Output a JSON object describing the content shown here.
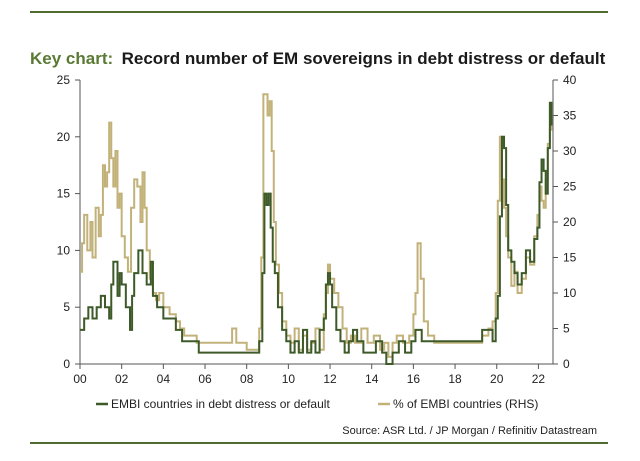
{
  "colors": {
    "rule": "#4f6b32",
    "title_key": "#5a7a34",
    "title_text": "#1a1a1a",
    "series_left": "#3d5a28",
    "series_right": "#c2b27a"
  },
  "header": {
    "key_label": "Key chart:",
    "title": "Record number of EM sovereigns in debt distress or default"
  },
  "footer": {
    "source": "Source: ASR Ltd. / JP Morgan / Refinitiv Datastream"
  },
  "chart_data": {
    "type": "line",
    "title": "Record number of EM sovereigns in debt distress or default",
    "xlabel": "",
    "ylabel": "",
    "y2label": "",
    "xlim": [
      2000,
      2022.7
    ],
    "ylim": [
      0,
      25
    ],
    "y2lim": [
      0,
      40
    ],
    "x_ticks": [
      2000,
      2002,
      2004,
      2006,
      2008,
      2010,
      2012,
      2014,
      2016,
      2018,
      2020,
      2022
    ],
    "x_tick_labels": [
      "00",
      "02",
      "04",
      "06",
      "08",
      "10",
      "12",
      "14",
      "16",
      "18",
      "20",
      "22"
    ],
    "y_ticks": [
      0,
      5,
      10,
      15,
      20,
      25
    ],
    "y_tick_labels": [
      "0",
      "5",
      "10",
      "15",
      "20",
      "25"
    ],
    "y2_ticks": [
      0,
      5,
      10,
      15,
      20,
      25,
      30,
      35,
      40
    ],
    "y2_tick_labels": [
      "0",
      "5",
      "10",
      "15",
      "20",
      "25",
      "30",
      "35",
      "40"
    ],
    "grid": false,
    "legend_position": "bottom",
    "series": [
      {
        "name": "EMBI countries in debt distress or default",
        "axis": "left",
        "x": [
          2000.0,
          2000.2,
          2000.4,
          2000.6,
          2000.8,
          2001.0,
          2001.2,
          2001.4,
          2001.5,
          2001.6,
          2001.8,
          2001.9,
          2002.0,
          2002.2,
          2002.4,
          2002.5,
          2002.6,
          2002.8,
          2003.0,
          2003.2,
          2003.4,
          2003.5,
          2003.7,
          2004.0,
          2004.3,
          2004.6,
          2004.9,
          2005.3,
          2005.7,
          2006.0,
          2006.5,
          2007.0,
          2007.5,
          2008.0,
          2008.6,
          2008.75,
          2008.85,
          2008.95,
          2009.05,
          2009.15,
          2009.25,
          2009.35,
          2009.5,
          2009.7,
          2009.9,
          2010.1,
          2010.3,
          2010.5,
          2010.7,
          2010.9,
          2011.1,
          2011.3,
          2011.5,
          2011.7,
          2011.8,
          2011.9,
          2012.0,
          2012.1,
          2012.3,
          2012.5,
          2012.7,
          2012.9,
          2013.1,
          2013.3,
          2013.6,
          2013.9,
          2014.2,
          2014.5,
          2014.7,
          2015.0,
          2015.3,
          2015.6,
          2015.9,
          2016.1,
          2016.4,
          2016.7,
          2017.0,
          2017.5,
          2018.0,
          2018.5,
          2019.0,
          2019.3,
          2019.6,
          2019.8,
          2019.95,
          2020.05,
          2020.15,
          2020.25,
          2020.35,
          2020.45,
          2020.55,
          2020.7,
          2020.85,
          2021.0,
          2021.2,
          2021.4,
          2021.6,
          2021.8,
          2021.95,
          2022.05,
          2022.15,
          2022.25,
          2022.35,
          2022.45,
          2022.55,
          2022.62
        ],
        "values": [
          3,
          4,
          5,
          4,
          5,
          6,
          5,
          4,
          7,
          9,
          6,
          8,
          7,
          5,
          3,
          6,
          8,
          10,
          8,
          7,
          9,
          6,
          5,
          4,
          4,
          3,
          2,
          2,
          1,
          1,
          1,
          1,
          1,
          1,
          2,
          8,
          15,
          14,
          15,
          12,
          9,
          8,
          5,
          3,
          2,
          1,
          2,
          1,
          3,
          1,
          2,
          1,
          3,
          4,
          7,
          8,
          7,
          5,
          3,
          2,
          1,
          2,
          3,
          2,
          1,
          1,
          2,
          1,
          0,
          1,
          2,
          1,
          2,
          3,
          2,
          2,
          2,
          2,
          2,
          2,
          2,
          3,
          3,
          2,
          4,
          6,
          13,
          20,
          19,
          14,
          10,
          9,
          8,
          7,
          8,
          10,
          9,
          11,
          12,
          16,
          18,
          17,
          15,
          19,
          23,
          21
        ]
      },
      {
        "name": "% of EMBI countries (RHS)",
        "axis": "right",
        "x": [
          2000.0,
          2000.1,
          2000.2,
          2000.35,
          2000.5,
          2000.6,
          2000.75,
          2000.9,
          2001.0,
          2001.1,
          2001.2,
          2001.3,
          2001.4,
          2001.5,
          2001.6,
          2001.7,
          2001.8,
          2001.9,
          2002.0,
          2002.15,
          2002.3,
          2002.45,
          2002.6,
          2002.75,
          2002.9,
          2003.0,
          2003.1,
          2003.2,
          2003.35,
          2003.5,
          2003.65,
          2003.8,
          2004.0,
          2004.3,
          2004.6,
          2004.8,
          2005.0,
          2005.3,
          2005.6,
          2006.0,
          2006.5,
          2007.0,
          2007.3,
          2007.5,
          2008.0,
          2008.5,
          2008.6,
          2008.7,
          2008.8,
          2008.9,
          2009.0,
          2009.1,
          2009.2,
          2009.3,
          2009.4,
          2009.55,
          2009.7,
          2009.9,
          2010.1,
          2010.3,
          2010.5,
          2010.7,
          2010.9,
          2011.1,
          2011.3,
          2011.5,
          2011.7,
          2011.8,
          2011.9,
          2012.0,
          2012.2,
          2012.4,
          2012.6,
          2012.8,
          2013.0,
          2013.2,
          2013.5,
          2013.8,
          2014.1,
          2014.4,
          2014.6,
          2014.8,
          2015.0,
          2015.2,
          2015.5,
          2015.8,
          2016.0,
          2016.1,
          2016.2,
          2016.35,
          2016.5,
          2016.7,
          2017.0,
          2017.5,
          2018.0,
          2018.5,
          2019.0,
          2019.3,
          2019.6,
          2019.8,
          2019.95,
          2020.05,
          2020.15,
          2020.25,
          2020.35,
          2020.45,
          2020.55,
          2020.7,
          2020.85,
          2021.0,
          2021.2,
          2021.4,
          2021.6,
          2021.8,
          2021.95,
          2022.05,
          2022.15,
          2022.25,
          2022.35,
          2022.45,
          2022.55,
          2022.62
        ],
        "values": [
          13,
          17,
          21,
          16,
          20,
          15,
          22,
          18,
          21,
          28,
          25,
          27,
          34,
          29,
          25,
          30,
          22,
          24,
          18,
          15,
          13,
          22,
          26,
          25,
          20,
          27,
          22,
          16,
          12,
          10,
          9,
          10,
          8,
          7,
          6,
          5,
          4,
          4,
          3,
          3,
          3,
          3,
          5,
          3,
          2,
          2,
          5,
          15,
          38,
          38,
          35,
          37,
          30,
          20,
          14,
          10,
          6,
          4,
          3,
          5,
          2,
          4,
          2,
          3,
          5,
          2,
          7,
          10,
          14,
          12,
          10,
          8,
          5,
          3,
          4,
          3,
          5,
          3,
          4,
          2,
          3,
          1,
          3,
          4,
          3,
          4,
          7,
          10,
          17,
          12,
          6,
          4,
          3,
          3,
          3,
          3,
          3,
          4,
          5,
          6,
          10,
          23,
          32,
          26,
          22,
          18,
          15,
          11,
          13,
          10,
          12,
          15,
          14,
          18,
          21,
          25,
          23,
          22,
          26,
          31,
          33,
          35
        ]
      }
    ]
  }
}
